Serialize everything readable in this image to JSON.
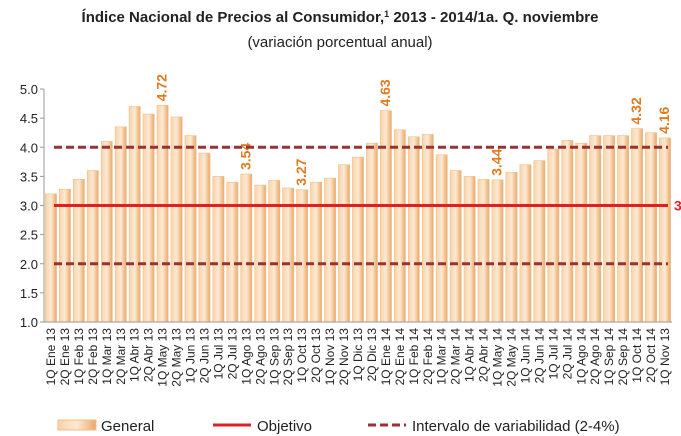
{
  "chart_data": {
    "type": "bar",
    "title": "Índice Nacional de Precios  al Consumidor,",
    "title_note": "1",
    "title_end": " 2013 - 2014/1a. Q. noviembre",
    "subtitle": "(variación porcentual anual)",
    "categories": [
      "1Q Ene 13",
      "2Q Ene 13",
      "1Q Feb 13",
      "2Q Feb 13",
      "1Q Mar 13",
      "2Q Mar 13",
      "1Q Abr 13",
      "2Q Abr 13",
      "1Q May 13",
      "2Q May 13",
      "1Q Jun 13",
      "2Q Jun 13",
      "1Q Jul 13",
      "2Q Jul 13",
      "1Q Ago 13",
      "2Q Ago 13",
      "1Q Sep 13",
      "2Q Sep 13",
      "1Q Oct 13",
      "2Q Oct 13",
      "1Q Nov 13",
      "2Q Nov 13",
      "1Q Dic 13",
      "2Q Dic 13",
      "1Q Ene 14",
      "2Q Ene 14",
      "1Q Feb 14",
      "2Q Feb 14",
      "1Q Mar 14",
      "2Q Mar 14",
      "1Q Abr 14",
      "2Q Abr 14",
      "1Q May 14",
      "2Q May 14",
      "1Q Jun 14",
      "2Q Jun 14",
      "1Q Jul 14",
      "2Q Jul 14",
      "1Q Ago 14",
      "2Q Ago 14",
      "1Q Sep 14",
      "2Q Sep 14",
      "1Q Oct 14",
      "2Q Oct 14",
      "1Q Nov 13"
    ],
    "series": [
      {
        "name": "General",
        "color": "#f2bd86",
        "values": [
          3.2,
          3.28,
          3.45,
          3.6,
          4.1,
          4.35,
          4.7,
          4.57,
          4.72,
          4.52,
          4.2,
          3.9,
          3.5,
          3.4,
          3.54,
          3.35,
          3.43,
          3.3,
          3.27,
          3.4,
          3.47,
          3.7,
          3.83,
          4.07,
          4.63,
          4.3,
          4.18,
          4.22,
          3.87,
          3.6,
          3.5,
          3.45,
          3.44,
          3.57,
          3.7,
          3.77,
          3.97,
          4.12,
          4.07,
          4.2,
          4.2,
          4.2,
          4.32,
          4.25,
          4.16
        ],
        "value_labels": [
          null,
          null,
          null,
          null,
          null,
          null,
          null,
          null,
          "4.72",
          null,
          null,
          null,
          null,
          null,
          "3.54",
          null,
          null,
          null,
          "3.27",
          null,
          null,
          null,
          null,
          null,
          "4.63",
          null,
          null,
          null,
          null,
          null,
          null,
          null,
          "3.44",
          null,
          null,
          null,
          null,
          null,
          null,
          null,
          null,
          null,
          "4.32",
          null,
          "4.16"
        ],
        "label_color": "#e07a1f"
      }
    ],
    "reference_lines": [
      {
        "name": "Objetivo",
        "values": [
          3
        ],
        "label": "3",
        "color": "#e02020",
        "style": "solid"
      },
      {
        "name": "Intervalo de variabilidad (2-4%)",
        "values": [
          2,
          4
        ],
        "color": "#993333",
        "style": "dashed"
      }
    ],
    "ylim": [
      1.0,
      5.0
    ],
    "yticks": [
      {
        "value": 1,
        "label": "1.0"
      },
      {
        "value": 1.5,
        "label": "1.5"
      },
      {
        "value": 2,
        "label": "2.0"
      },
      {
        "value": 2.5,
        "label": "2.5"
      },
      {
        "value": 3,
        "label": "3.0"
      },
      {
        "value": 3.5,
        "label": "3.5"
      },
      {
        "value": 4,
        "label": "4.0"
      },
      {
        "value": 4.5,
        "label": "4.5"
      },
      {
        "value": 5,
        "label": "5.0"
      }
    ],
    "legend": "bottom"
  }
}
